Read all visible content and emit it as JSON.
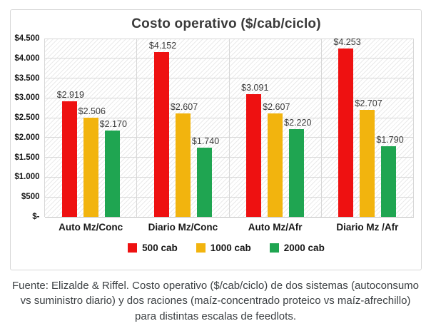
{
  "figure": {
    "caption": "Fuente: Elizalde & Riffel. Costo operativo ($/cab/ciclo) de dos sistemas (autoconsumo vs suministro diario) y dos raciones (maíz-concentrado proteico vs maíz-afrechillo) para distintas escalas de feedlots."
  },
  "y_axis": {
    "tick_labels": [
      "$4.500",
      "$4.000",
      "$3.500",
      "$3.000",
      "$2.500",
      "$2.000",
      "$1.500",
      "$1.000",
      "$500",
      "$-"
    ]
  },
  "colors": {
    "series_red": "#ee1111",
    "series_gold": "#f2b40e",
    "series_green": "#1fa551",
    "gridline": "#d7d7d7",
    "frame_border": "#d7d7d7",
    "title_text": "#3a3a3a",
    "caption_text": "#3c4043"
  },
  "chart_data": {
    "type": "bar",
    "title": "Costo operativo ($/cab/ciclo)",
    "categories": [
      "Auto Mz/Conc",
      "Diario Mz/Conc",
      "Auto Mz/Afr",
      "Diario Mz /Afr"
    ],
    "series": [
      {
        "name": "500 cab",
        "color": "#ee1111",
        "values": [
          2919,
          4152,
          3091,
          4253
        ],
        "labels": [
          "$2.919",
          "$4.152",
          "$3.091",
          "$4.253"
        ]
      },
      {
        "name": "1000 cab",
        "color": "#f2b40e",
        "values": [
          2506,
          2607,
          2607,
          2707
        ],
        "labels": [
          "$2.506",
          "$2.607",
          "$2.607",
          "$2.707"
        ]
      },
      {
        "name": "2000 cab",
        "color": "#1fa551",
        "values": [
          2170,
          1740,
          2220,
          1790
        ],
        "labels": [
          "$2.170",
          "$1.740",
          "$2.220",
          "$1.790"
        ]
      }
    ],
    "xlabel": "",
    "ylabel": "",
    "ylim": [
      0,
      4500
    ],
    "y_step": 500,
    "grid": true,
    "plot_background": "diagonal-hatch",
    "legend_position": "bottom"
  }
}
